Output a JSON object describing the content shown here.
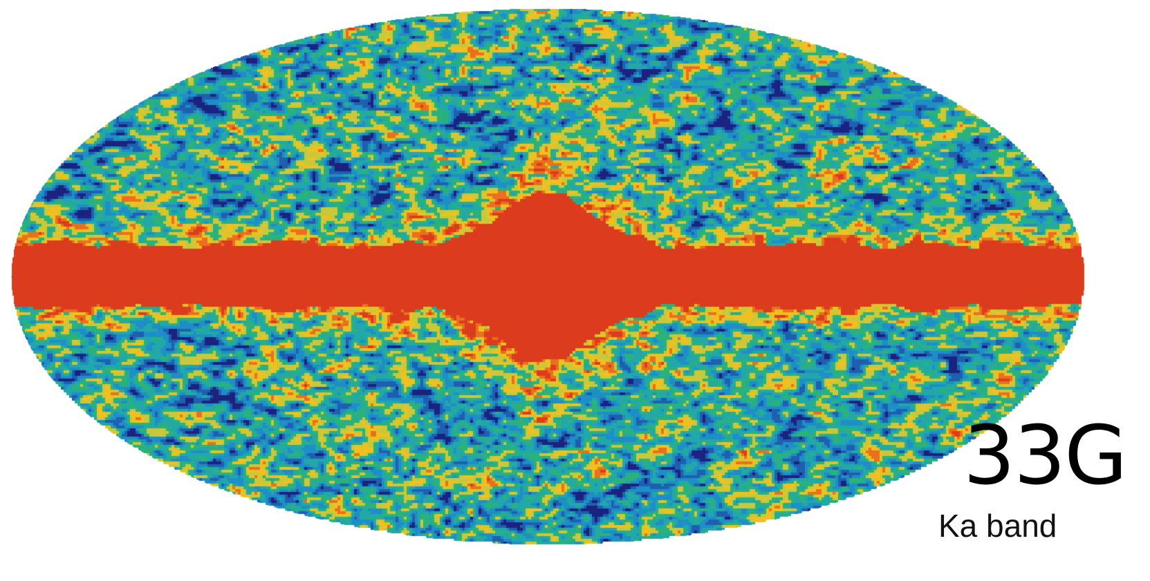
{
  "figure": {
    "frequency_label": "33G",
    "band_label": "Ka band"
  },
  "colors": {
    "background": "#ffffff",
    "galactic_plane": "#dc3c1e",
    "palette": [
      "#1a237e",
      "#1f5fb0",
      "#1e8fc6",
      "#22a8a8",
      "#2ab27a",
      "#c8c83a",
      "#f0c020",
      "#e8701e",
      "#dc3c1e"
    ]
  },
  "projection": "mollweide"
}
